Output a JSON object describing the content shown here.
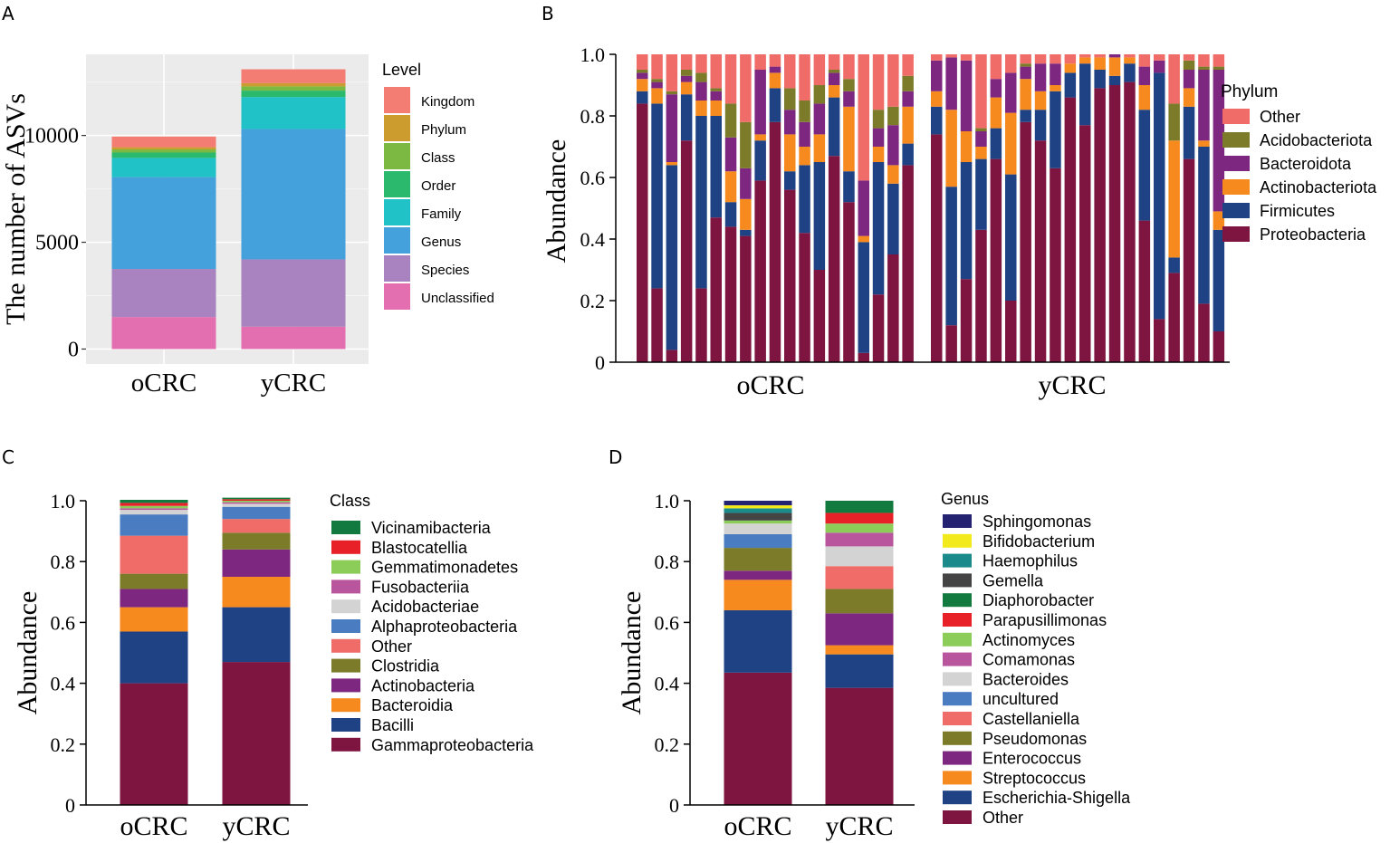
{
  "panels": {
    "A": "A",
    "B": "B",
    "C": "C",
    "D": "D"
  },
  "chart_data": [
    {
      "panel": "A",
      "type": "bar",
      "stacked": true,
      "ylabel": "The number of ASVs",
      "xlabel": "",
      "categories": [
        "oCRC",
        "yCRC"
      ],
      "yticks": [
        0,
        5000,
        10000
      ],
      "ylim": [
        -700,
        13800
      ],
      "grid": true,
      "legend_title": "Level",
      "legend_order": [
        "Kingdom",
        "Phylum",
        "Class",
        "Order",
        "Family",
        "Genus",
        "Species",
        "Unclassified"
      ],
      "series": [
        {
          "name": "Unclassified",
          "color": "#e36fb0",
          "values": [
            1500,
            1050
          ]
        },
        {
          "name": "Species",
          "color": "#a883bf",
          "values": [
            2250,
            3150
          ]
        },
        {
          "name": "Genus",
          "color": "#44a1db",
          "values": [
            4300,
            6100
          ]
        },
        {
          "name": "Family",
          "color": "#20c1c7",
          "values": [
            900,
            1500
          ]
        },
        {
          "name": "Order",
          "color": "#2bb96e",
          "values": [
            250,
            300
          ]
        },
        {
          "name": "Class",
          "color": "#7cb943",
          "values": [
            150,
            200
          ]
        },
        {
          "name": "Phylum",
          "color": "#cc9c2e",
          "values": [
            100,
            150
          ]
        },
        {
          "name": "Kingdom",
          "color": "#f37d73",
          "values": [
            500,
            650
          ]
        }
      ]
    },
    {
      "panel": "B",
      "type": "bar",
      "stacked": true,
      "ylabel": "Abundance",
      "xlabel": "",
      "groups": [
        "oCRC",
        "yCRC"
      ],
      "samples_per_group": [
        19,
        19
      ],
      "yticks": [
        "0",
        "0.2",
        "0.4",
        "0.6",
        "0.8",
        "1.0"
      ],
      "ylim": [
        0,
        1
      ],
      "legend_title": "Phylum",
      "legend_order": [
        "Other",
        "Acidobacteriota",
        "Bacteroidota",
        "Actinobacteriota",
        "Firmicutes",
        "Proteobacteria"
      ],
      "series": [
        {
          "name": "Proteobacteria",
          "color": "#7e1540",
          "values": [
            0.84,
            0.24,
            0.04,
            0.72,
            0.24,
            0.47,
            0.44,
            0.41,
            0.59,
            0.78,
            0.56,
            0.42,
            0.3,
            0.67,
            0.52,
            0.03,
            0.22,
            0.35,
            0.64,
            0.74,
            0.12,
            0.27,
            0.43,
            0.66,
            0.2,
            0.78,
            0.72,
            0.63,
            0.86,
            0.77,
            0.89,
            0.9,
            0.91,
            0.46,
            0.14,
            0.29,
            0.66,
            0.19,
            0.1
          ]
        },
        {
          "name": "Firmicutes",
          "color": "#1e4283",
          "values": [
            0.04,
            0.6,
            0.6,
            0.15,
            0.56,
            0.33,
            0.08,
            0.02,
            0.13,
            0.11,
            0.06,
            0.22,
            0.35,
            0.19,
            0.1,
            0.36,
            0.43,
            0.23,
            0.07,
            0.09,
            0.45,
            0.38,
            0.23,
            0.1,
            0.41,
            0.04,
            0.1,
            0.25,
            0.08,
            0.2,
            0.06,
            0.03,
            0.06,
            0.36,
            0.8,
            0.05,
            0.17,
            0.51,
            0.33
          ]
        },
        {
          "name": "Actinobacteriota",
          "color": "#f68a1f",
          "values": [
            0.04,
            0.05,
            0.01,
            0.04,
            0.05,
            0.05,
            0.1,
            0.1,
            0.02,
            0.05,
            0.12,
            0.06,
            0.09,
            0.04,
            0.21,
            0.02,
            0.05,
            0.06,
            0.12,
            0.05,
            0.25,
            0.1,
            0.04,
            0.1,
            0.2,
            0.1,
            0.06,
            0.02,
            0.03,
            0.02,
            0.04,
            0.06,
            0.02,
            0.08,
            0.0,
            0.38,
            0.06,
            0.02,
            0.06
          ]
        },
        {
          "name": "Bacteroidota",
          "color": "#7d2780",
          "values": [
            0.02,
            0.02,
            0.22,
            0.02,
            0.06,
            0.03,
            0.11,
            0.1,
            0.21,
            0.02,
            0.08,
            0.08,
            0.1,
            0.04,
            0.05,
            0.18,
            0.06,
            0.13,
            0.05,
            0.1,
            0.17,
            0.23,
            0.05,
            0.06,
            0.13,
            0.04,
            0.09,
            0.07,
            0.0,
            0.0,
            0.0,
            0.01,
            0.0,
            0.06,
            0.04,
            0.0,
            0.06,
            0.23,
            0.46
          ]
        },
        {
          "name": "Acidobacteriota",
          "color": "#7b7b2a",
          "values": [
            0.01,
            0.01,
            0.01,
            0.02,
            0.03,
            0.01,
            0.11,
            0.15,
            0.0,
            0.0,
            0.07,
            0.07,
            0.06,
            0.01,
            0.04,
            0.0,
            0.06,
            0.06,
            0.05,
            0.0,
            0.0,
            0.0,
            0.01,
            0.0,
            0.0,
            0.01,
            0.0,
            0.0,
            0.0,
            0.0,
            0.0,
            0.0,
            0.0,
            0.0,
            0.0,
            0.12,
            0.03,
            0.01,
            0.01
          ]
        },
        {
          "name": "Other",
          "color": "#ef6c68",
          "values": [
            0.05,
            0.08,
            0.12,
            0.05,
            0.06,
            0.11,
            0.16,
            0.22,
            0.05,
            0.04,
            0.11,
            0.15,
            0.1,
            0.05,
            0.08,
            0.41,
            0.18,
            0.17,
            0.07,
            0.02,
            0.01,
            0.02,
            0.24,
            0.08,
            0.06,
            0.03,
            0.03,
            0.03,
            0.03,
            0.01,
            0.01,
            0.0,
            0.01,
            0.04,
            0.02,
            0.16,
            0.02,
            0.04,
            0.04
          ]
        }
      ]
    },
    {
      "panel": "C",
      "type": "bar",
      "stacked": true,
      "ylabel": "Abundance",
      "xlabel": "",
      "categories": [
        "oCRC",
        "yCRC"
      ],
      "yticks": [
        "0",
        "0.2",
        "0.4",
        "0.6",
        "0.8",
        "1.0"
      ],
      "ylim": [
        0,
        1
      ],
      "legend_title": "Class",
      "legend_order": [
        "Vicinamibacteria",
        "Blastocatellia",
        "Gemmatimonadetes",
        "Fusobacteriia",
        "Acidobacteriae",
        "Alphaproteobacteria",
        "Other",
        "Clostridia",
        "Actinobacteria",
        "Bacteroidia",
        "Bacilli",
        "Gammaproteobacteria"
      ],
      "series": [
        {
          "name": "Gammaproteobacteria",
          "color": "#7e1540",
          "values": [
            0.4,
            0.47
          ]
        },
        {
          "name": "Bacilli",
          "color": "#1e4283",
          "values": [
            0.17,
            0.18
          ]
        },
        {
          "name": "Bacteroidia",
          "color": "#f68a1f",
          "values": [
            0.08,
            0.1
          ]
        },
        {
          "name": "Actinobacteria",
          "color": "#7d2780",
          "values": [
            0.06,
            0.09
          ]
        },
        {
          "name": "Clostridia",
          "color": "#7b7b2a",
          "values": [
            0.05,
            0.055
          ]
        },
        {
          "name": "Other",
          "color": "#ef6c68",
          "values": [
            0.125,
            0.045
          ]
        },
        {
          "name": "Alphaproteobacteria",
          "color": "#4a7cc1",
          "values": [
            0.07,
            0.04
          ]
        },
        {
          "name": "Acidobacteriae",
          "color": "#d3d3d3",
          "values": [
            0.015,
            0.01
          ]
        },
        {
          "name": "Fusobacteriia",
          "color": "#b8559c",
          "values": [
            0.005,
            0.005
          ]
        },
        {
          "name": "Gemmatimonadetes",
          "color": "#8ccd5a",
          "values": [
            0.008,
            0.005
          ]
        },
        {
          "name": "Blastocatellia",
          "color": "#e82128",
          "values": [
            0.01,
            0.005
          ]
        },
        {
          "name": "Vicinamibacteria",
          "color": "#127a3e",
          "values": [
            0.01,
            0.005
          ]
        }
      ]
    },
    {
      "panel": "D",
      "type": "bar",
      "stacked": true,
      "ylabel": "Abundance",
      "xlabel": "",
      "categories": [
        "oCRC",
        "yCRC"
      ],
      "yticks": [
        "0",
        "0.2",
        "0.4",
        "0.6",
        "0.8",
        "1.0"
      ],
      "ylim": [
        0,
        1
      ],
      "legend_title": "Genus",
      "legend_order": [
        "Sphingomonas",
        "Bifidobacterium",
        "Haemophilus",
        "Gemella",
        "Diaphorobacter",
        "Parapusillimonas",
        "Actinomyces",
        "Comamonas",
        "Bacteroides",
        "uncultured",
        "Castellaniella",
        "Pseudomonas",
        "Enterococcus",
        "Streptococcus",
        "Escherichia-Shigella",
        "Other"
      ],
      "series": [
        {
          "name": "Other",
          "color": "#7e1540",
          "values": [
            0.435,
            0.385
          ]
        },
        {
          "name": "Escherichia-Shigella",
          "color": "#1e4283",
          "values": [
            0.205,
            0.11
          ]
        },
        {
          "name": "Streptococcus",
          "color": "#f68a1f",
          "values": [
            0.1,
            0.03
          ]
        },
        {
          "name": "Enterococcus",
          "color": "#7d2780",
          "values": [
            0.03,
            0.105
          ]
        },
        {
          "name": "Pseudomonas",
          "color": "#7b7b2a",
          "values": [
            0.075,
            0.08
          ]
        },
        {
          "name": "Castellaniella",
          "color": "#ef6c68",
          "values": [
            0.0,
            0.075
          ]
        },
        {
          "name": "uncultured",
          "color": "#4a7cc1",
          "values": [
            0.045,
            0.0
          ]
        },
        {
          "name": "Bacteroides",
          "color": "#d3d3d3",
          "values": [
            0.035,
            0.065
          ]
        },
        {
          "name": "Comamonas",
          "color": "#b8559c",
          "values": [
            0.0,
            0.045
          ]
        },
        {
          "name": "Actinomyces",
          "color": "#8ccd5a",
          "values": [
            0.01,
            0.03
          ]
        },
        {
          "name": "Parapusillimonas",
          "color": "#e82128",
          "values": [
            0.0,
            0.035
          ]
        },
        {
          "name": "Diaphorobacter",
          "color": "#127a3e",
          "values": [
            0.0,
            0.04
          ]
        },
        {
          "name": "Gemella",
          "color": "#444444",
          "values": [
            0.025,
            0.0
          ]
        },
        {
          "name": "Haemophilus",
          "color": "#1a8a8a",
          "values": [
            0.015,
            0.0
          ]
        },
        {
          "name": "Bifidobacterium",
          "color": "#f2ea1c",
          "values": [
            0.01,
            0.0
          ]
        },
        {
          "name": "Sphingomonas",
          "color": "#232372",
          "values": [
            0.015,
            0.0
          ]
        }
      ]
    }
  ]
}
